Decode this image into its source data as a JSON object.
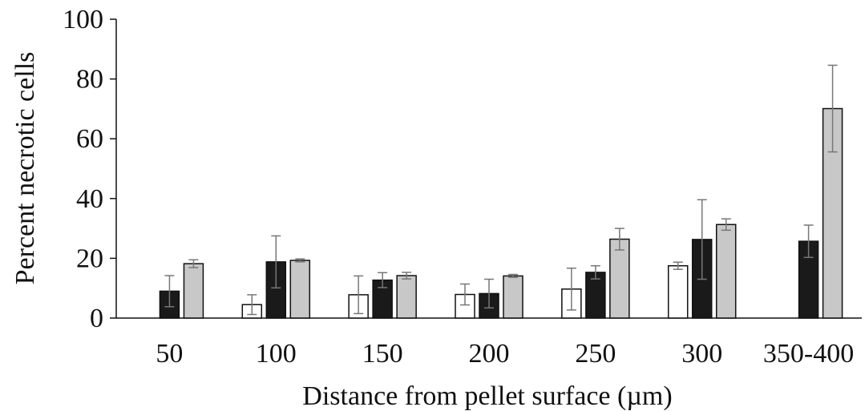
{
  "chart_data": {
    "type": "bar",
    "title": "",
    "xlabel": "Distance from pellet surface (µm)",
    "ylabel": "Percent necrotic cells",
    "ylim": [
      0,
      100
    ],
    "yticks": [
      0,
      20,
      40,
      60,
      80,
      100
    ],
    "categories": [
      "50",
      "100",
      "150",
      "200",
      "250",
      "300",
      "350-400"
    ],
    "grid": false,
    "legend": "none",
    "series": [
      {
        "color": "#ffffff",
        "values": [
          null,
          4.5,
          7.8,
          7.9,
          9.7,
          17.5,
          null
        ],
        "errors": [
          null,
          3.3,
          6.3,
          3.5,
          7.0,
          1.2,
          null
        ]
      },
      {
        "color": "#1a1a1a",
        "values": [
          9.0,
          18.8,
          12.7,
          8.2,
          15.3,
          26.3,
          25.7
        ],
        "errors": [
          5.2,
          8.7,
          2.5,
          4.8,
          2.2,
          13.3,
          5.4
        ]
      },
      {
        "color": "#c8c8c8",
        "values": [
          18.2,
          19.3,
          14.2,
          14.1,
          26.4,
          31.3,
          70.1
        ],
        "errors": [
          1.3,
          0.5,
          1.1,
          0.5,
          3.6,
          1.9,
          14.5
        ]
      }
    ]
  }
}
